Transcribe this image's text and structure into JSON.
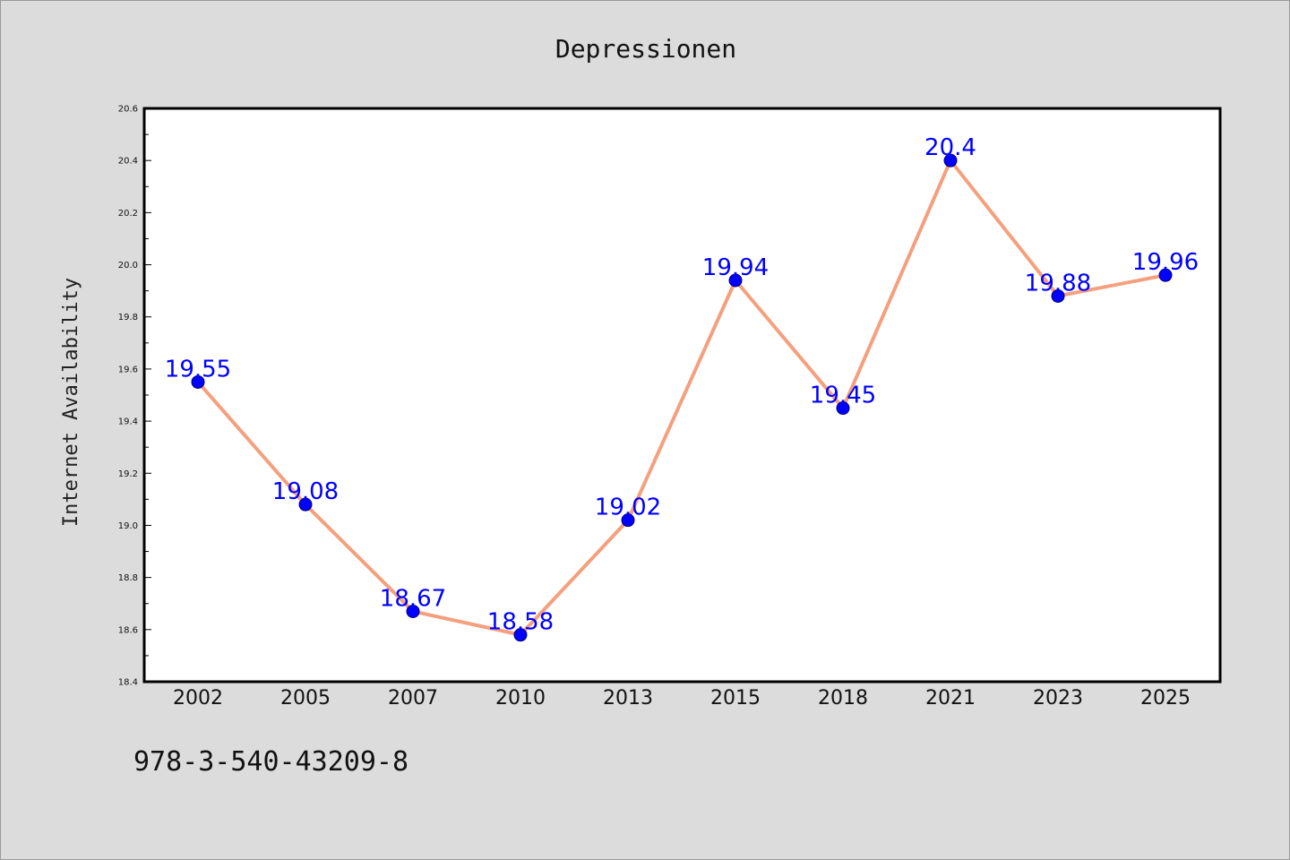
{
  "figure": {
    "background": "#dcdcdc",
    "footer_text": "978-3-540-43209-8"
  },
  "chart_data": {
    "type": "line",
    "title": "Depressionen",
    "xlabel": "",
    "ylabel": "Internet Availability",
    "categories": [
      "2002",
      "2005",
      "2007",
      "2010",
      "2013",
      "2015",
      "2018",
      "2021",
      "2023",
      "2025"
    ],
    "series": [
      {
        "values": [
          19.55,
          19.08,
          18.67,
          18.58,
          19.02,
          19.94,
          19.45,
          20.4,
          19.88,
          19.96
        ],
        "data_labels": [
          "19.55",
          "19.08",
          "18.67",
          "18.58",
          "19.02",
          "19.94",
          "19.45",
          "20.4",
          "19.88",
          "19.96"
        ],
        "line_color": "#f4a07e",
        "marker_color": "#0000ff",
        "label_color": "#0000ff"
      }
    ],
    "ylim": [
      18.4,
      20.6
    ],
    "yticks": [
      "18.4",
      "18.6",
      "18.8",
      "19.0",
      "19.2",
      "19.4",
      "19.6",
      "19.8",
      "20.0",
      "20.2",
      "20.4",
      "20.6"
    ],
    "grid": false,
    "legend": "none",
    "plot_background": "#ffffff"
  }
}
